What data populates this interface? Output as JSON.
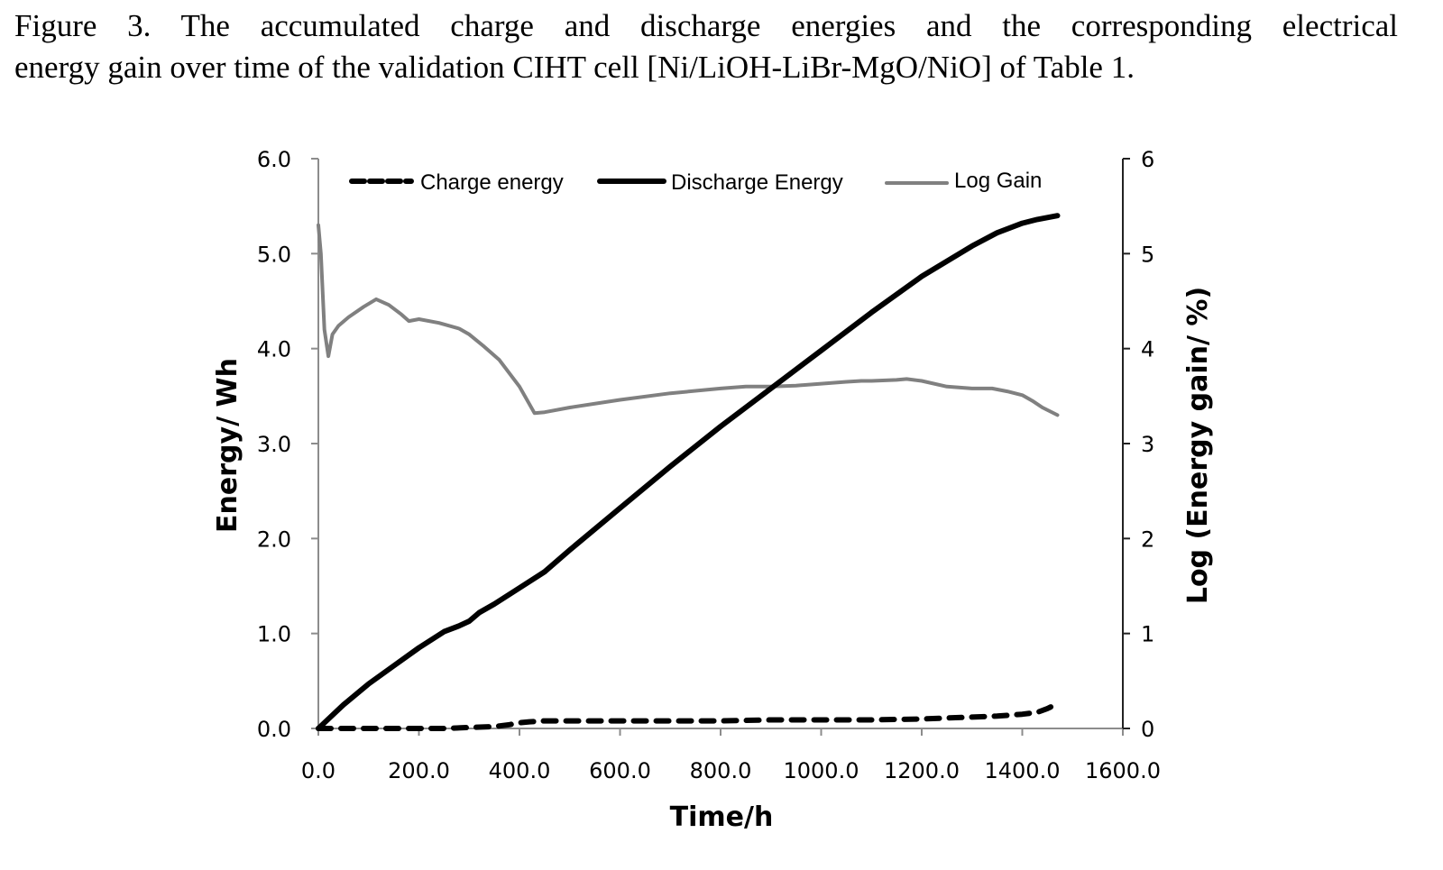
{
  "figure": {
    "caption_line1": "Figure 3.  The accumulated charge and discharge energies and the corresponding electrical",
    "caption_line2": "energy gain over time of the validation CIHT cell [Ni/LiOH-LiBr-MgO/NiO] of Table 1."
  },
  "chart_data": {
    "type": "line",
    "title": "",
    "xlabel": "Time/h",
    "ylabel": "Energy/ Wh",
    "y2label": "Log (Energy gain/ %)",
    "xlim": [
      0,
      1600
    ],
    "ylim": [
      0,
      6
    ],
    "y2lim": [
      0,
      6
    ],
    "xticks": [
      "0.0",
      "200.0",
      "400.0",
      "600.0",
      "800.0",
      "1000.0",
      "1200.0",
      "1400.0",
      "1600.0"
    ],
    "xtick_values": [
      0,
      200,
      400,
      600,
      800,
      1000,
      1200,
      1400,
      1600
    ],
    "yticks": [
      "0.0",
      "1.0",
      "2.0",
      "3.0",
      "4.0",
      "5.0",
      "6.0"
    ],
    "ytick_values": [
      0,
      1,
      2,
      3,
      4,
      5,
      6
    ],
    "y2ticks": [
      "0",
      "1",
      "2",
      "3",
      "4",
      "5",
      "6"
    ],
    "y2tick_values": [
      0,
      1,
      2,
      3,
      4,
      5,
      6
    ],
    "grid": false,
    "legend_position": "top",
    "series": [
      {
        "name": "Charge energy",
        "axis": "left",
        "style": "dashed",
        "color": "#000000",
        "x": [
          0,
          50,
          100,
          150,
          200,
          250,
          300,
          350,
          380,
          400,
          420,
          450,
          500,
          600,
          700,
          800,
          900,
          1000,
          1100,
          1200,
          1250,
          1300,
          1350,
          1400,
          1430,
          1450,
          1470
        ],
        "y": [
          0.0,
          0.0,
          0.0,
          0.0,
          0.0,
          0.0,
          0.01,
          0.02,
          0.04,
          0.06,
          0.07,
          0.08,
          0.08,
          0.08,
          0.08,
          0.08,
          0.09,
          0.09,
          0.09,
          0.1,
          0.11,
          0.12,
          0.13,
          0.15,
          0.17,
          0.21,
          0.26
        ]
      },
      {
        "name": "Discharge Energy",
        "axis": "left",
        "style": "solid",
        "color": "#000000",
        "x": [
          0,
          50,
          100,
          150,
          200,
          250,
          280,
          300,
          320,
          350,
          400,
          450,
          500,
          600,
          700,
          800,
          900,
          1000,
          1100,
          1200,
          1300,
          1350,
          1400,
          1430,
          1470
        ],
        "y": [
          0.0,
          0.25,
          0.47,
          0.66,
          0.85,
          1.02,
          1.08,
          1.13,
          1.22,
          1.31,
          1.48,
          1.65,
          1.88,
          2.32,
          2.76,
          3.18,
          3.58,
          3.98,
          4.38,
          4.76,
          5.08,
          5.22,
          5.32,
          5.36,
          5.4
        ]
      },
      {
        "name": "Log Gain",
        "axis": "right",
        "style": "solid",
        "color": "#808080",
        "x": [
          0,
          5,
          12,
          20,
          28,
          40,
          60,
          90,
          115,
          140,
          165,
          180,
          200,
          240,
          280,
          300,
          330,
          360,
          400,
          430,
          450,
          500,
          600,
          700,
          800,
          850,
          900,
          950,
          1000,
          1050,
          1080,
          1100,
          1150,
          1170,
          1200,
          1250,
          1300,
          1340,
          1370,
          1400,
          1420,
          1440,
          1470
        ],
        "y": [
          5.3,
          5.0,
          4.2,
          3.92,
          4.15,
          4.24,
          4.33,
          4.44,
          4.52,
          4.46,
          4.36,
          4.29,
          4.31,
          4.27,
          4.21,
          4.15,
          4.02,
          3.88,
          3.6,
          3.32,
          3.33,
          3.38,
          3.46,
          3.53,
          3.58,
          3.6,
          3.6,
          3.61,
          3.63,
          3.65,
          3.66,
          3.66,
          3.67,
          3.68,
          3.66,
          3.6,
          3.58,
          3.58,
          3.55,
          3.51,
          3.45,
          3.38,
          3.3
        ]
      }
    ]
  }
}
